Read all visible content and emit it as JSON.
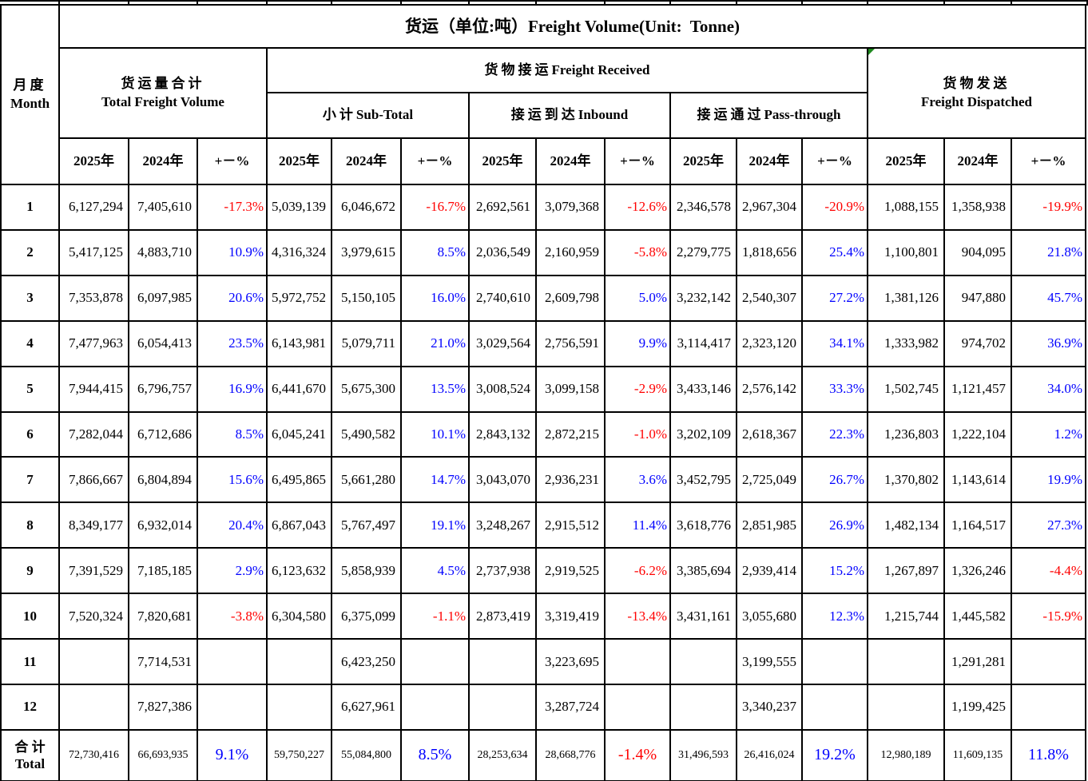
{
  "title": "货运（单位:吨）Freight Volume(Unit:  Tonne)",
  "month_header": {
    "zh": "月度",
    "en": "Month"
  },
  "groups": {
    "total": {
      "zh": "货运量合计",
      "en": "Total Freight Volume"
    },
    "received": {
      "zh": "货物接运",
      "en": "Freight Received"
    },
    "subtotal": {
      "zh": "小计",
      "en": "Sub-Total"
    },
    "inbound": {
      "zh": "接运到达",
      "en": "Inbound"
    },
    "passthrough": {
      "zh": "接运通过",
      "en": "Pass-through"
    },
    "dispatched": {
      "zh": "货物发送",
      "en": "Freight Dispatched"
    }
  },
  "year_headers": {
    "y2025": "2025年",
    "y2024": "2024年",
    "pct": "+－%"
  },
  "colors": {
    "positive_pct": "#0000ff",
    "negative_pct": "#ff0000",
    "text": "#000000",
    "border": "#000000",
    "flag_triangle": "#1f8a1f"
  },
  "rows": [
    {
      "month": "1",
      "values": [
        "6,127,294",
        "7,405,610",
        "-17.3%",
        "5,039,139",
        "6,046,672",
        "-16.7%",
        "2,692,561",
        "3,079,368",
        "-12.6%",
        "2,346,578",
        "2,967,304",
        "-20.9%",
        "1,088,155",
        "1,358,938",
        "-19.9%"
      ]
    },
    {
      "month": "2",
      "values": [
        "5,417,125",
        "4,883,710",
        "10.9%",
        "4,316,324",
        "3,979,615",
        "8.5%",
        "2,036,549",
        "2,160,959",
        "-5.8%",
        "2,279,775",
        "1,818,656",
        "25.4%",
        "1,100,801",
        "904,095",
        "21.8%"
      ]
    },
    {
      "month": "3",
      "values": [
        "7,353,878",
        "6,097,985",
        "20.6%",
        "5,972,752",
        "5,150,105",
        "16.0%",
        "2,740,610",
        "2,609,798",
        "5.0%",
        "3,232,142",
        "2,540,307",
        "27.2%",
        "1,381,126",
        "947,880",
        "45.7%"
      ]
    },
    {
      "month": "4",
      "values": [
        "7,477,963",
        "6,054,413",
        "23.5%",
        "6,143,981",
        "5,079,711",
        "21.0%",
        "3,029,564",
        "2,756,591",
        "9.9%",
        "3,114,417",
        "2,323,120",
        "34.1%",
        "1,333,982",
        "974,702",
        "36.9%"
      ]
    },
    {
      "month": "5",
      "values": [
        "7,944,415",
        "6,796,757",
        "16.9%",
        "6,441,670",
        "5,675,300",
        "13.5%",
        "3,008,524",
        "3,099,158",
        "-2.9%",
        "3,433,146",
        "2,576,142",
        "33.3%",
        "1,502,745",
        "1,121,457",
        "34.0%"
      ]
    },
    {
      "month": "6",
      "values": [
        "7,282,044",
        "6,712,686",
        "8.5%",
        "6,045,241",
        "5,490,582",
        "10.1%",
        "2,843,132",
        "2,872,215",
        "-1.0%",
        "3,202,109",
        "2,618,367",
        "22.3%",
        "1,236,803",
        "1,222,104",
        "1.2%"
      ]
    },
    {
      "month": "7",
      "values": [
        "7,866,667",
        "6,804,894",
        "15.6%",
        "6,495,865",
        "5,661,280",
        "14.7%",
        "3,043,070",
        "2,936,231",
        "3.6%",
        "3,452,795",
        "2,725,049",
        "26.7%",
        "1,370,802",
        "1,143,614",
        "19.9%"
      ]
    },
    {
      "month": "8",
      "values": [
        "8,349,177",
        "6,932,014",
        "20.4%",
        "6,867,043",
        "5,767,497",
        "19.1%",
        "3,248,267",
        "2,915,512",
        "11.4%",
        "3,618,776",
        "2,851,985",
        "26.9%",
        "1,482,134",
        "1,164,517",
        "27.3%"
      ]
    },
    {
      "month": "9",
      "values": [
        "7,391,529",
        "7,185,185",
        "2.9%",
        "6,123,632",
        "5,858,939",
        "4.5%",
        "2,737,938",
        "2,919,525",
        "-6.2%",
        "3,385,694",
        "2,939,414",
        "15.2%",
        "1,267,897",
        "1,326,246",
        "-4.4%"
      ]
    },
    {
      "month": "10",
      "values": [
        "7,520,324",
        "7,820,681",
        "-3.8%",
        "6,304,580",
        "6,375,099",
        "-1.1%",
        "2,873,419",
        "3,319,419",
        "-13.4%",
        "3,431,161",
        "3,055,680",
        "12.3%",
        "1,215,744",
        "1,445,582",
        "-15.9%"
      ]
    },
    {
      "month": "11",
      "values": [
        "",
        "7,714,531",
        "",
        "",
        "6,423,250",
        "",
        "",
        "3,223,695",
        "",
        "",
        "3,199,555",
        "",
        "",
        "1,291,281",
        ""
      ]
    },
    {
      "month": "12",
      "values": [
        "",
        "7,827,386",
        "",
        "",
        "6,627,961",
        "",
        "",
        "3,287,724",
        "",
        "",
        "3,340,237",
        "",
        "",
        "1,199,425",
        ""
      ]
    }
  ],
  "total_row": {
    "label_zh": "合 计",
    "label_en": "Total",
    "values": [
      "72,730,416",
      "66,693,935",
      "9.1%",
      "59,750,227",
      "55,084,800",
      "8.5%",
      "28,253,634",
      "28,668,776",
      "-1.4%",
      "31,496,593",
      "26,416,024",
      "19.2%",
      "12,980,189",
      "11,609,135",
      "11.8%"
    ],
    "flag_cell_indexes": [
      7,
      8,
      10,
      11,
      13
    ]
  },
  "dispatched_header_flag": true
}
